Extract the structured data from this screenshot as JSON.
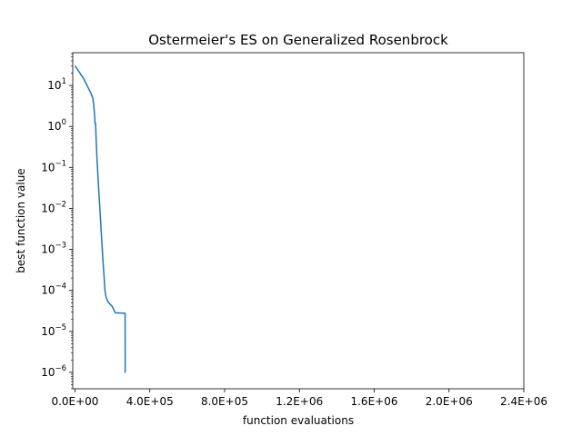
{
  "chart_data": {
    "type": "line",
    "title": "Ostermeier's ES on Generalized Rosenbrock",
    "xlabel": "function evaluations",
    "ylabel": "best function value",
    "xlim": [
      -12000,
      2400000
    ],
    "ylim_log10": [
      -6.4,
      1.8
    ],
    "yscale": "log",
    "grid": false,
    "x_ticks": [
      0,
      400000,
      800000,
      1200000,
      1600000,
      2000000,
      2400000
    ],
    "x_tick_labels": [
      "0.0E+00",
      "4.0E+05",
      "8.0E+05",
      "1.2E+06",
      "1.6E+06",
      "2.0E+06",
      "2.4E+06"
    ],
    "y_ticks_exp": [
      -6,
      -5,
      -4,
      -3,
      -2,
      -1,
      0,
      1
    ],
    "line_color": "#1f77b4",
    "series": [
      {
        "name": "",
        "x": [
          0,
          15000,
          30000,
          45000,
          60000,
          75000,
          85000,
          95000,
          100000,
          105000,
          107000,
          110000,
          113000,
          118000,
          125000,
          132000,
          138000,
          145000,
          150000,
          156000,
          160000,
          166000,
          172000,
          180000,
          190000,
          200000,
          210000,
          215000,
          222000,
          230000,
          245000,
          260000,
          268000,
          268500,
          270000
        ],
        "y": [
          30,
          24,
          19,
          15,
          11,
          8,
          6.5,
          5,
          3.5,
          1.8,
          1.2,
          1.2,
          0.5,
          0.15,
          0.04,
          0.012,
          0.004,
          0.0012,
          0.0005,
          0.0002,
          0.0001,
          7e-05,
          5.8e-05,
          5e-05,
          4.5e-05,
          4e-05,
          3.2e-05,
          2.85e-05,
          2.83e-05,
          2.82e-05,
          2.8e-05,
          2.78e-05,
          2.76e-05,
          1e-06,
          1e-06
        ]
      }
    ]
  }
}
